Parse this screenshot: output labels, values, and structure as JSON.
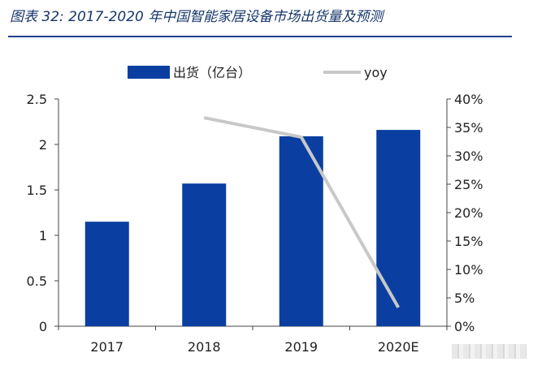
{
  "title": "图表 32:  2017-2020 年中国智能家居设备市场出货量及预测",
  "colors": {
    "bar": "#0a3fa1",
    "line": "#c8c8c8",
    "title": "#17366b",
    "rule": "#1f3f8a"
  },
  "chart_data": {
    "type": "bar",
    "categories": [
      "2017",
      "2018",
      "2019",
      "2020E"
    ],
    "series": [
      {
        "name": "出货（亿台）",
        "type": "bar",
        "axis": "left",
        "values": [
          1.15,
          1.57,
          2.09,
          2.16
        ]
      },
      {
        "name": "yoy",
        "type": "line",
        "axis": "right",
        "values": [
          null,
          0.367,
          0.333,
          0.033
        ]
      }
    ],
    "ylim": [
      0,
      2.5
    ],
    "y_ticks": [
      "0",
      "0.5",
      "1",
      "1.5",
      "2",
      "2.5"
    ],
    "y2lim": [
      0,
      0.4
    ],
    "y2_ticks": [
      "0%",
      "5%",
      "10%",
      "15%",
      "20%",
      "25%",
      "30%",
      "35%",
      "40%"
    ],
    "legend_position": "top-center",
    "grid": false
  }
}
